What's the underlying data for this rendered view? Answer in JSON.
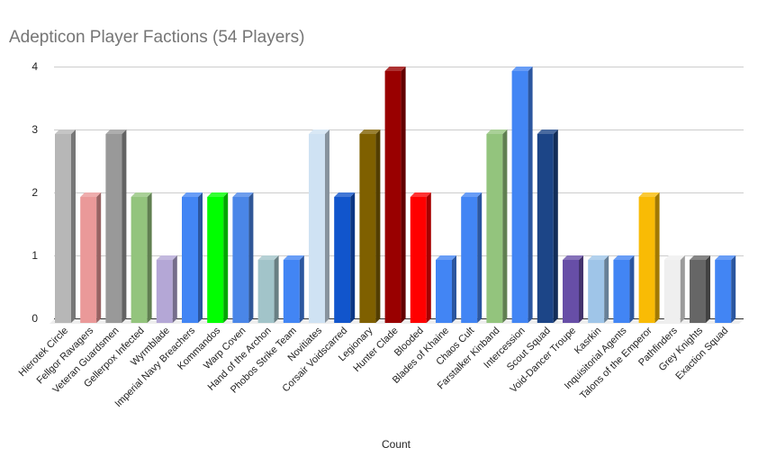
{
  "chart_data": {
    "type": "bar",
    "title": "Adepticon Player Factions (54 Players)",
    "xlabel": "Count",
    "ylabel": "",
    "ylim": [
      0,
      4
    ],
    "yticks": [
      "0",
      "1",
      "2",
      "3",
      "4"
    ],
    "grid": true,
    "legend": "none",
    "categories": [
      "Hierotek Circle",
      "Fellgor Ravagers",
      "Veteran Guardsmen",
      "Gellerpox Infected",
      "Wyrmblade",
      "Imperial Navy Breachers",
      "Kommandos",
      "Warp Coven",
      "Hand of the Archon",
      "Phobos Strike Team",
      "Novitiates",
      "Corsair Voidscarred",
      "Legionary",
      "Hunter Clade",
      "Blooded",
      "Blades of Khaine",
      "Chaos Cult",
      "Farstalker Kinband",
      "Intercession",
      "Scout Squad",
      "Void-Dancer Troupe",
      "Kasrkin",
      "Inquisitorial Agents",
      "Talons of the Emperor",
      "Pathfinders",
      "Grey Knights",
      "Exaction Squad"
    ],
    "values": [
      3,
      2,
      3,
      2,
      1,
      2,
      2,
      2,
      1,
      1,
      3,
      2,
      3,
      4,
      2,
      1,
      2,
      3,
      4,
      3,
      1,
      1,
      1,
      2,
      1,
      1,
      1
    ],
    "colors": [
      "#b7b7b7",
      "#ea9999",
      "#999999",
      "#93c47d",
      "#b4a7d6",
      "#4285f4",
      "#00ff00",
      "#4a86e8",
      "#a2c4c9",
      "#4285f4",
      "#cfe2f3",
      "#1155cc",
      "#7f6000",
      "#990000",
      "#ff0000",
      "#4285f4",
      "#4285f4",
      "#93c47d",
      "#4285f4",
      "#1c4587",
      "#674ea7",
      "#9fc5e8",
      "#4285f4",
      "#f9bb05",
      "#efefef",
      "#666666",
      "#4285f4"
    ]
  }
}
